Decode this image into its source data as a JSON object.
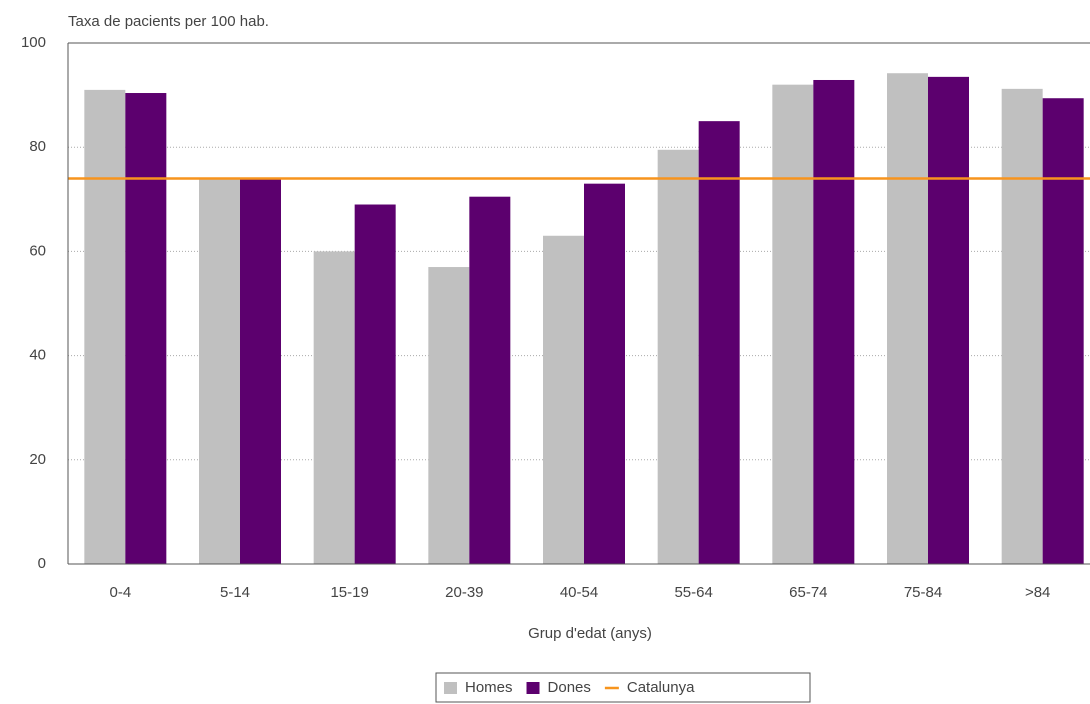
{
  "chart_data": {
    "type": "bar",
    "subtitle": "Taxa de pacients per 100 hab.",
    "x_label": "Grup d'edat (anys)",
    "categories": [
      "0-4",
      "5-14",
      "15-19",
      "20-39",
      "40-54",
      "55-64",
      "65-74",
      "75-84",
      ">84"
    ],
    "series": [
      {
        "name": "Homes",
        "color": "#c0c0c0",
        "values": [
          91,
          74,
          60,
          57,
          63,
          79.5,
          92,
          94.2,
          91.2
        ]
      },
      {
        "name": "Dones",
        "color": "#5c006e",
        "values": [
          90.4,
          74,
          69,
          70.5,
          73,
          85,
          92.9,
          93.5,
          89.4
        ]
      }
    ],
    "reference_line": {
      "name": "Catalunya",
      "value": 74,
      "color": "#f7941d"
    },
    "ylim": [
      0,
      100
    ],
    "yticks": [
      0,
      20,
      40,
      60,
      80,
      100
    ],
    "grid": true,
    "legend": "bottom"
  }
}
